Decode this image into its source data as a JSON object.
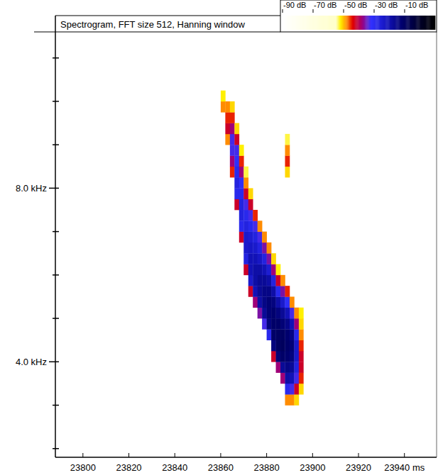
{
  "chart_data": {
    "type": "spectrogram",
    "title": "Spectrogram, FFT size 512, Hanning window",
    "xlim": [
      23788,
      23954
    ],
    "xticks": [
      23800,
      23820,
      23840,
      23860,
      23880,
      23900,
      23920,
      {
        "value": 23940,
        "label": "23940 ms"
      }
    ],
    "ylim": [
      1.8,
      11.6
    ],
    "yticks": [
      {
        "value": 4,
        "label": "4.0 kHz"
      },
      {
        "value": 8,
        "label": "8.0 kHz"
      }
    ],
    "yminor": [
      2,
      3,
      5,
      6,
      7,
      9,
      10,
      11
    ],
    "colorbar": {
      "range": [
        -90,
        10
      ],
      "ticks": [
        {
          "value": -90,
          "label": "-90 dB"
        },
        {
          "value": -70,
          "label": "-70 dB"
        },
        {
          "value": -50,
          "label": "-50 dB"
        },
        {
          "value": -30,
          "label": "-30 dB"
        },
        {
          "value": -10,
          "label": "-10 dB"
        }
      ]
    },
    "cell_width": 2,
    "cell_height": 0.25,
    "cells": [
      [
        23860,
        9.75,
        -48
      ],
      [
        23860,
        10.0,
        -52
      ],
      [
        23862,
        9.0,
        -48
      ],
      [
        23862,
        9.25,
        -42
      ],
      [
        23862,
        9.5,
        -45
      ],
      [
        23862,
        9.75,
        -48
      ],
      [
        23864,
        8.25,
        -45
      ],
      [
        23864,
        8.5,
        -38
      ],
      [
        23864,
        8.75,
        -33
      ],
      [
        23864,
        9.0,
        -33
      ],
      [
        23864,
        9.25,
        -38
      ],
      [
        23864,
        9.5,
        -45
      ],
      [
        23864,
        9.75,
        -51
      ],
      [
        23866,
        7.5,
        -42
      ],
      [
        23866,
        7.75,
        -29
      ],
      [
        23866,
        8.0,
        -27
      ],
      [
        23866,
        8.25,
        -29
      ],
      [
        23866,
        8.5,
        -31
      ],
      [
        23866,
        8.75,
        -33
      ],
      [
        23866,
        9.0,
        -42
      ],
      [
        23866,
        9.25,
        -51
      ],
      [
        23868,
        6.75,
        -42
      ],
      [
        23868,
        7.0,
        -29
      ],
      [
        23868,
        7.25,
        -27
      ],
      [
        23868,
        7.5,
        -27
      ],
      [
        23868,
        7.75,
        -29
      ],
      [
        23868,
        8.0,
        -31
      ],
      [
        23868,
        8.25,
        -38
      ],
      [
        23868,
        8.5,
        -45
      ],
      [
        23868,
        8.75,
        -52
      ],
      [
        23870,
        6.0,
        -42
      ],
      [
        23870,
        6.25,
        -27
      ],
      [
        23870,
        6.5,
        -24
      ],
      [
        23870,
        6.75,
        -24
      ],
      [
        23870,
        7.0,
        -27
      ],
      [
        23870,
        7.25,
        -29
      ],
      [
        23870,
        7.5,
        -33
      ],
      [
        23870,
        7.75,
        -42
      ],
      [
        23870,
        8.0,
        -48
      ],
      [
        23870,
        8.25,
        -53
      ],
      [
        23872,
        5.5,
        -42
      ],
      [
        23872,
        5.75,
        -24
      ],
      [
        23872,
        6.0,
        -21
      ],
      [
        23872,
        6.25,
        -21
      ],
      [
        23872,
        6.5,
        -23
      ],
      [
        23872,
        6.75,
        -25
      ],
      [
        23872,
        7.0,
        -29
      ],
      [
        23872,
        7.25,
        -33
      ],
      [
        23872,
        7.5,
        -42
      ],
      [
        23872,
        7.75,
        -51
      ],
      [
        23874,
        5.25,
        -38
      ],
      [
        23874,
        5.5,
        -21
      ],
      [
        23874,
        5.75,
        -19
      ],
      [
        23874,
        6.0,
        -19
      ],
      [
        23874,
        6.25,
        -21
      ],
      [
        23874,
        6.5,
        -24
      ],
      [
        23874,
        6.75,
        -27
      ],
      [
        23874,
        7.0,
        -33
      ],
      [
        23874,
        7.25,
        -45
      ],
      [
        23876,
        5.0,
        -36
      ],
      [
        23876,
        5.25,
        -19
      ],
      [
        23876,
        5.5,
        -17
      ],
      [
        23876,
        5.75,
        -17
      ],
      [
        23876,
        6.0,
        -19
      ],
      [
        23876,
        6.25,
        -23
      ],
      [
        23876,
        6.5,
        -27
      ],
      [
        23876,
        6.75,
        -33
      ],
      [
        23876,
        7.0,
        -48
      ],
      [
        23878,
        4.75,
        -33
      ],
      [
        23878,
        5.0,
        -17
      ],
      [
        23878,
        5.25,
        -15
      ],
      [
        23878,
        5.5,
        -15
      ],
      [
        23878,
        5.75,
        -17
      ],
      [
        23878,
        6.0,
        -21
      ],
      [
        23878,
        6.25,
        -27
      ],
      [
        23878,
        6.5,
        -36
      ],
      [
        23878,
        6.75,
        -48
      ],
      [
        23880,
        4.5,
        -29
      ],
      [
        23880,
        4.75,
        -14
      ],
      [
        23880,
        5.0,
        -13
      ],
      [
        23880,
        5.25,
        -13
      ],
      [
        23880,
        5.5,
        -15
      ],
      [
        23880,
        5.75,
        -19
      ],
      [
        23880,
        6.0,
        -25
      ],
      [
        23880,
        6.25,
        -36
      ],
      [
        23880,
        6.5,
        -48
      ],
      [
        23882,
        4.0,
        -42
      ],
      [
        23882,
        4.25,
        -14
      ],
      [
        23882,
        4.5,
        -11
      ],
      [
        23882,
        4.75,
        -11
      ],
      [
        23882,
        5.0,
        -12
      ],
      [
        23882,
        5.25,
        -14
      ],
      [
        23882,
        5.5,
        -19
      ],
      [
        23882,
        5.75,
        -27
      ],
      [
        23882,
        6.0,
        -38
      ],
      [
        23882,
        6.25,
        -51
      ],
      [
        23884,
        3.75,
        -38
      ],
      [
        23884,
        4.0,
        -13
      ],
      [
        23884,
        4.25,
        -10
      ],
      [
        23884,
        4.5,
        -10
      ],
      [
        23884,
        4.75,
        -11
      ],
      [
        23884,
        5.0,
        -14
      ],
      [
        23884,
        5.25,
        -19
      ],
      [
        23884,
        5.5,
        -29
      ],
      [
        23884,
        5.75,
        -42
      ],
      [
        23884,
        6.0,
        -52
      ],
      [
        23886,
        3.5,
        -38
      ],
      [
        23886,
        3.75,
        -17
      ],
      [
        23886,
        4.0,
        -11
      ],
      [
        23886,
        4.25,
        -9
      ],
      [
        23886,
        4.5,
        -10
      ],
      [
        23886,
        4.75,
        -13
      ],
      [
        23886,
        5.0,
        -17
      ],
      [
        23886,
        5.25,
        -24
      ],
      [
        23886,
        5.5,
        -36
      ],
      [
        23886,
        5.75,
        -48
      ],
      [
        23888,
        3.0,
        -48
      ],
      [
        23888,
        3.25,
        -29
      ],
      [
        23888,
        3.5,
        -19
      ],
      [
        23888,
        3.75,
        -15
      ],
      [
        23888,
        4.0,
        -12
      ],
      [
        23888,
        4.25,
        -11
      ],
      [
        23888,
        4.5,
        -12
      ],
      [
        23888,
        4.75,
        -15
      ],
      [
        23888,
        5.0,
        -21
      ],
      [
        23888,
        5.25,
        -31
      ],
      [
        23888,
        5.5,
        -45
      ],
      [
        23888,
        8.25,
        -51
      ],
      [
        23888,
        8.5,
        -45
      ],
      [
        23888,
        8.75,
        -48
      ],
      [
        23888,
        9.0,
        -53
      ],
      [
        23890,
        3.0,
        -48
      ],
      [
        23890,
        3.25,
        -33
      ],
      [
        23890,
        3.5,
        -21
      ],
      [
        23890,
        3.75,
        -17
      ],
      [
        23890,
        4.0,
        -14
      ],
      [
        23890,
        4.25,
        -13
      ],
      [
        23890,
        4.5,
        -15
      ],
      [
        23890,
        4.75,
        -21
      ],
      [
        23890,
        5.0,
        -33
      ],
      [
        23890,
        5.25,
        -48
      ],
      [
        23892,
        3.0,
        -51
      ],
      [
        23892,
        3.25,
        -42
      ],
      [
        23892,
        3.5,
        -33
      ],
      [
        23892,
        3.75,
        -27
      ],
      [
        23892,
        4.0,
        -24
      ],
      [
        23892,
        4.25,
        -24
      ],
      [
        23892,
        4.5,
        -29
      ],
      [
        23892,
        4.75,
        -38
      ],
      [
        23892,
        5.0,
        -48
      ],
      [
        23894,
        3.25,
        -51
      ],
      [
        23894,
        3.5,
        -45
      ],
      [
        23894,
        3.75,
        -42
      ],
      [
        23894,
        4.0,
        -42
      ],
      [
        23894,
        4.25,
        -45
      ],
      [
        23894,
        4.5,
        -48
      ],
      [
        23894,
        4.75,
        -51
      ],
      [
        23894,
        5.0,
        -52
      ]
    ]
  }
}
